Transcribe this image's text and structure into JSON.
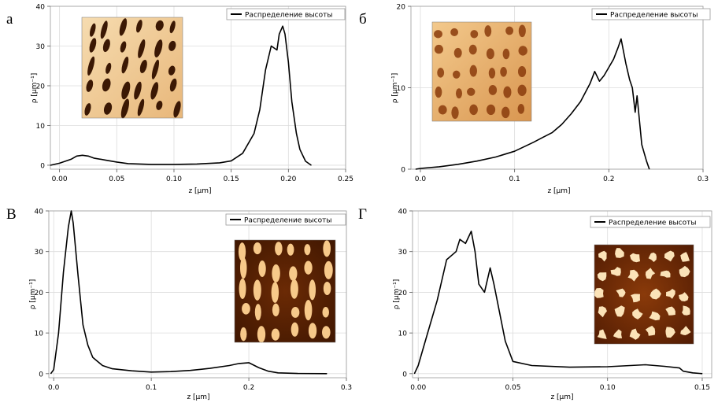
{
  "chart_data": [
    {
      "type": "line",
      "panel_label": "а",
      "legend": "Распределение высоты",
      "legend_position": "top-right",
      "xlabel": "z [µm]",
      "ylabel": "ρ [µm⁻¹]",
      "xlim": [
        -0.008,
        0.25
      ],
      "ylim": [
        -1,
        40
      ],
      "grid": true,
      "xticks": [
        "0.00",
        "0.05",
        "0.10",
        "0.15",
        "0.20",
        "0.25"
      ],
      "xtick_values": [
        0,
        0.05,
        0.1,
        0.15,
        0.2,
        0.25
      ],
      "yticks": [
        "0",
        "10",
        "20",
        "30",
        "40"
      ],
      "ytick_values": [
        0,
        10,
        20,
        30,
        40
      ],
      "inset": "AFM topography: dark elongated pores on light orange background",
      "series": [
        {
          "x": [
            -0.008,
            0,
            0.01,
            0.015,
            0.02,
            0.025,
            0.03,
            0.04,
            0.05,
            0.06,
            0.08,
            0.1,
            0.12,
            0.14,
            0.15,
            0.16,
            0.17,
            0.175,
            0.18,
            0.185,
            0.19,
            0.192,
            0.195,
            0.197,
            0.2,
            0.203,
            0.207,
            0.21,
            0.215,
            0.22
          ],
          "y": [
            0,
            0.5,
            1.5,
            2.3,
            2.5,
            2.3,
            1.8,
            1.3,
            0.8,
            0.4,
            0.2,
            0.2,
            0.3,
            0.6,
            1.1,
            3,
            8,
            14,
            24,
            30,
            29,
            33,
            35,
            33,
            26,
            16,
            8,
            4,
            1,
            0
          ]
        }
      ]
    },
    {
      "type": "line",
      "panel_label": "б",
      "legend": "Распределение высоты",
      "legend_position": "top-right",
      "xlabel": "z [µm]",
      "ylabel": "ρ [µm⁻¹]",
      "xlim": [
        -0.01,
        0.3
      ],
      "ylim": [
        0,
        20
      ],
      "grid": true,
      "xticks": [
        "0.0",
        "0.1",
        "0.2",
        "0.3"
      ],
      "xtick_values": [
        0,
        0.1,
        0.2,
        0.3
      ],
      "yticks": [
        "0",
        "10",
        "20"
      ],
      "ytick_values": [
        0,
        10,
        20
      ],
      "inset": "AFM topography: dark round pores on light orange background",
      "series": [
        {
          "x": [
            -0.005,
            0,
            0.02,
            0.04,
            0.06,
            0.08,
            0.1,
            0.12,
            0.13,
            0.14,
            0.15,
            0.16,
            0.17,
            0.18,
            0.185,
            0.19,
            0.195,
            0.2,
            0.205,
            0.21,
            0.213,
            0.218,
            0.222,
            0.225,
            0.228,
            0.23,
            0.235,
            0.24,
            0.243
          ],
          "y": [
            0,
            0.1,
            0.3,
            0.6,
            1,
            1.5,
            2.2,
            3.3,
            3.9,
            4.5,
            5.5,
            6.8,
            8.3,
            10.5,
            12,
            10.8,
            11.5,
            12.5,
            13.5,
            15,
            16,
            13,
            11,
            10,
            7,
            9,
            3,
            1,
            0
          ]
        }
      ]
    },
    {
      "type": "line",
      "panel_label": "В",
      "legend": "Распределение высоты",
      "legend_position": "top-right",
      "xlabel": "z [µm]",
      "ylabel": "ρ [µm⁻¹]",
      "xlim": [
        -0.005,
        0.3
      ],
      "ylim": [
        -1,
        40
      ],
      "grid": true,
      "xticks": [
        "0.0",
        "0.1",
        "0.2",
        "0.3"
      ],
      "xtick_values": [
        0,
        0.1,
        0.2,
        0.3
      ],
      "yticks": [
        "0",
        "10",
        "20",
        "30",
        "40"
      ],
      "ytick_values": [
        0,
        10,
        20,
        30,
        40
      ],
      "inset": "AFM topography: bright elongated islands on dark brown background",
      "series": [
        {
          "x": [
            -0.003,
            0,
            0.005,
            0.01,
            0.015,
            0.018,
            0.02,
            0.025,
            0.03,
            0.035,
            0.04,
            0.05,
            0.06,
            0.08,
            0.1,
            0.12,
            0.14,
            0.16,
            0.18,
            0.19,
            0.2,
            0.21,
            0.22,
            0.23,
            0.25,
            0.28
          ],
          "y": [
            0,
            1,
            10,
            25,
            36,
            40,
            37,
            24,
            12,
            7,
            4,
            2,
            1.2,
            0.7,
            0.4,
            0.5,
            0.8,
            1.3,
            2,
            2.5,
            2.7,
            1.5,
            0.6,
            0.2,
            0.05,
            0
          ]
        }
      ]
    },
    {
      "type": "line",
      "panel_label": "Г",
      "legend": "Распределение высоты",
      "legend_position": "top-right",
      "xlabel": "z [µm]",
      "ylabel": "ρ [µm⁻¹]",
      "xlim": [
        -0.003,
        0.155
      ],
      "ylim": [
        -1,
        40
      ],
      "grid": true,
      "xticks": [
        "0.00",
        "0.05",
        "0.10",
        "0.15"
      ],
      "xtick_values": [
        0,
        0.05,
        0.1,
        0.15
      ],
      "yticks": [
        "0",
        "10",
        "20",
        "30",
        "40"
      ],
      "ytick_values": [
        0,
        10,
        20,
        30,
        40
      ],
      "inset": "AFM topography: bright irregular grains on dark brown background",
      "series": [
        {
          "x": [
            -0.002,
            0,
            0.005,
            0.01,
            0.015,
            0.02,
            0.022,
            0.025,
            0.028,
            0.03,
            0.032,
            0.035,
            0.038,
            0.04,
            0.043,
            0.046,
            0.05,
            0.06,
            0.08,
            0.1,
            0.12,
            0.13,
            0.138,
            0.14,
            0.145,
            0.15
          ],
          "y": [
            0,
            2,
            10,
            18,
            28,
            30,
            33,
            32,
            35,
            30,
            22,
            20,
            26,
            22,
            15,
            8,
            3,
            2,
            1.6,
            1.7,
            2.2,
            1.8,
            1.4,
            0.6,
            0.2,
            0
          ]
        }
      ]
    }
  ]
}
